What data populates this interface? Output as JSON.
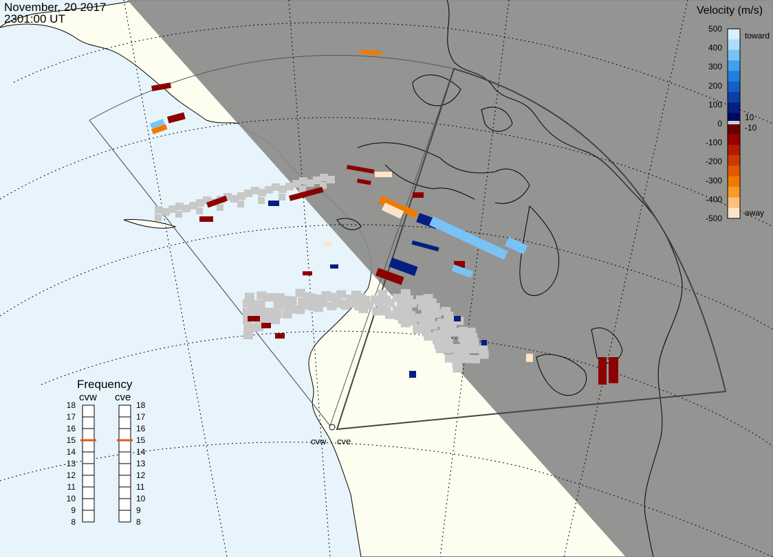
{
  "header": {
    "date": "November, 20 2017",
    "time": "2301:00 UT"
  },
  "legend": {
    "title": "Velocity (m/s)",
    "toward_label": "toward",
    "away_label": "away",
    "ticks": [
      "500",
      "400",
      "300",
      "200",
      "100",
      "0",
      "-100",
      "-200",
      "-300",
      "-400",
      "-500"
    ],
    "zero_labels": [
      "10",
      "-10"
    ],
    "colors": [
      "#d6eefd",
      "#aedcfb",
      "#79c2f6",
      "#3fa0ef",
      "#1f7fe0",
      "#155fc4",
      "#0c3fa6",
      "#041f82",
      "#000a63",
      "#6b0000",
      "#990000",
      "#b31c00",
      "#cc3a00",
      "#e05a00",
      "#f07a00",
      "#f89a2a",
      "#fcbf7e",
      "#fde3c8"
    ]
  },
  "frequency": {
    "title": "Frequency",
    "radars": [
      "cvw",
      "cve"
    ],
    "scale": [
      "18",
      "17",
      "16",
      "15",
      "14",
      "13",
      "12",
      "11",
      "10",
      "9",
      "8"
    ],
    "cvw_value": 15,
    "cve_value": 15,
    "marker_color": "#e05a1a"
  },
  "stations": {
    "west": "cvw",
    "east": "cve"
  },
  "colors": {
    "ocean": "#e8f4fb",
    "land_day": "#fdfdf0",
    "night": "#8c8c8c",
    "ground_scatter": "#c8c8c8",
    "coast": "#000000"
  }
}
